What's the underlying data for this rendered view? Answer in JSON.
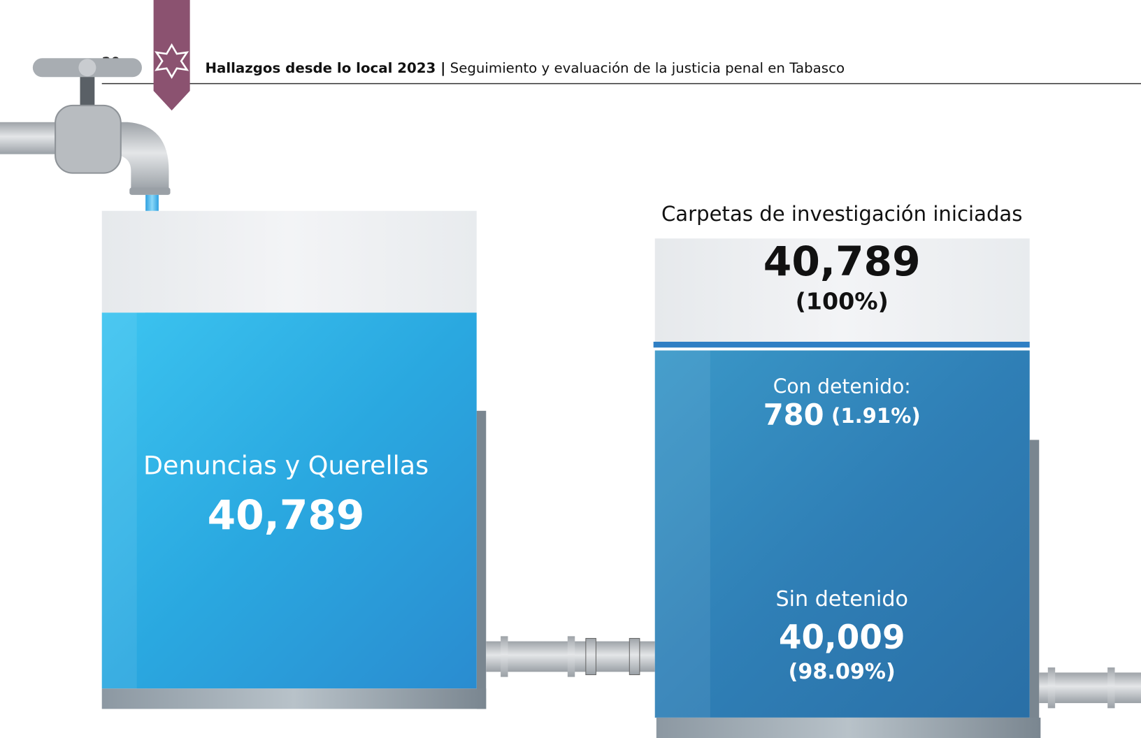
{
  "header": {
    "page_number": "20",
    "title": "Hallazgos desde lo local 2023 |",
    "subtitle": "Seguimiento y evaluación de la justicia penal en Tabasco"
  },
  "left_tank": {
    "label": "Denuncias y Querellas",
    "value": "40,789"
  },
  "right_tank": {
    "title": "Carpetas de investigación iniciadas",
    "total": "40,789",
    "total_percent": "(100%)",
    "sections": [
      {
        "label": "Con detenido:",
        "value": "780",
        "percent": "(1.91%)"
      },
      {
        "label": "Sin detenido",
        "value": "40,009",
        "percent": "(98.09%)"
      }
    ]
  }
}
